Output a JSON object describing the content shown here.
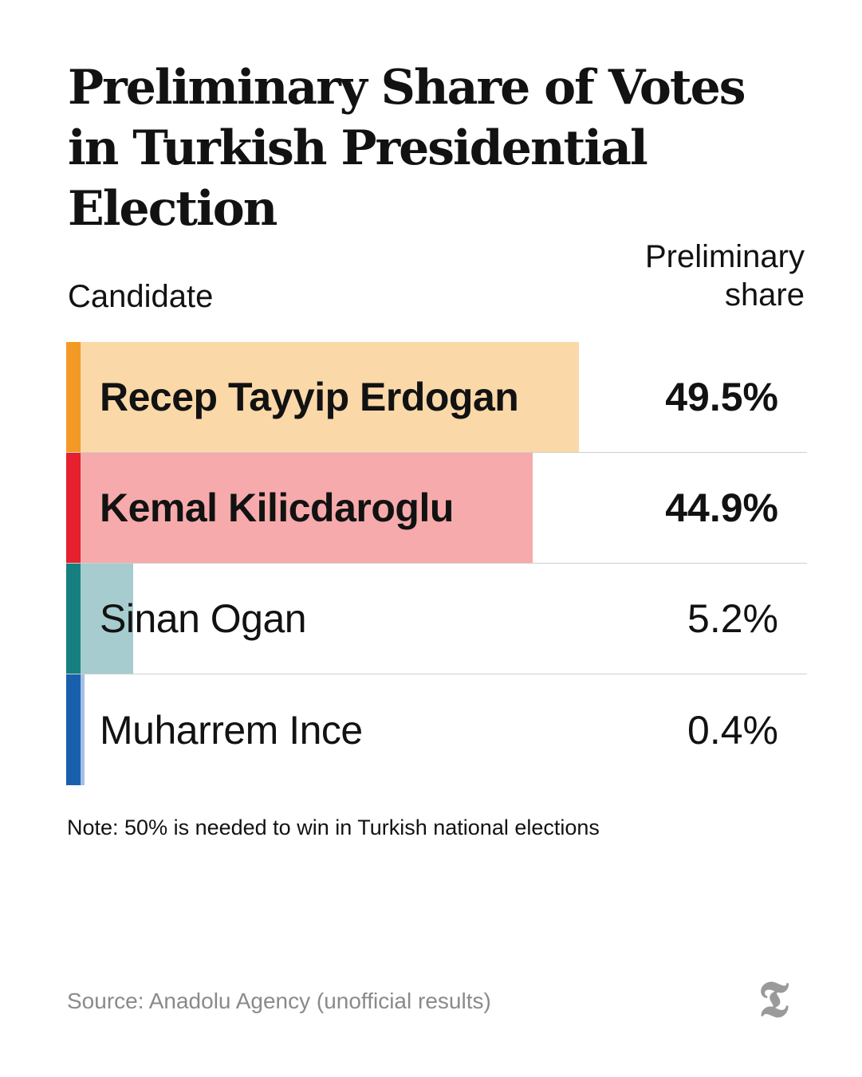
{
  "title": "Preliminary Share of Votes in Turkish Presidential Election",
  "header": {
    "candidate": "Candidate",
    "share": "Preliminary share"
  },
  "chart_data": {
    "type": "bar",
    "title": "Preliminary Share of Votes in Turkish Presidential Election",
    "categories": [
      "Recep Tayyip Erdogan",
      "Kemal Kilicdaroglu",
      "Sinan Ogan",
      "Muharrem Ince"
    ],
    "values": [
      49.5,
      44.9,
      5.2,
      0.4
    ],
    "labels": [
      "49.5%",
      "44.9%",
      "5.2%",
      "0.4%"
    ],
    "xlabel": "Candidate",
    "ylabel": "Preliminary share",
    "ylim": [
      0,
      100
    ],
    "grid": false,
    "rows": [
      {
        "name": "Recep Tayyip Erdogan",
        "share": 49.5,
        "label": "49.5%",
        "bold": true,
        "stripe_color": "#f39a26",
        "bar_color": "#fad8a8"
      },
      {
        "name": "Kemal Kilicdaroglu",
        "share": 44.9,
        "label": "44.9%",
        "bold": true,
        "stripe_color": "#e6202e",
        "bar_color": "#f6aaab"
      },
      {
        "name": "Sinan Ogan",
        "share": 5.2,
        "label": "5.2%",
        "bold": false,
        "stripe_color": "#167f80",
        "bar_color": "#a6cccf"
      },
      {
        "name": "Muharrem Ince",
        "share": 0.4,
        "label": "0.4%",
        "bold": false,
        "stripe_color": "#1a5fae",
        "bar_color": "#a3c1e6"
      }
    ]
  },
  "note": "Note: 50% is needed to win in Turkish national elections",
  "source": "Source: Anadolu Agency (unofficial results)",
  "logo": {
    "icon": "nyt-t-logo",
    "glyph": "𝕿",
    "color": "#9a9a9a"
  }
}
